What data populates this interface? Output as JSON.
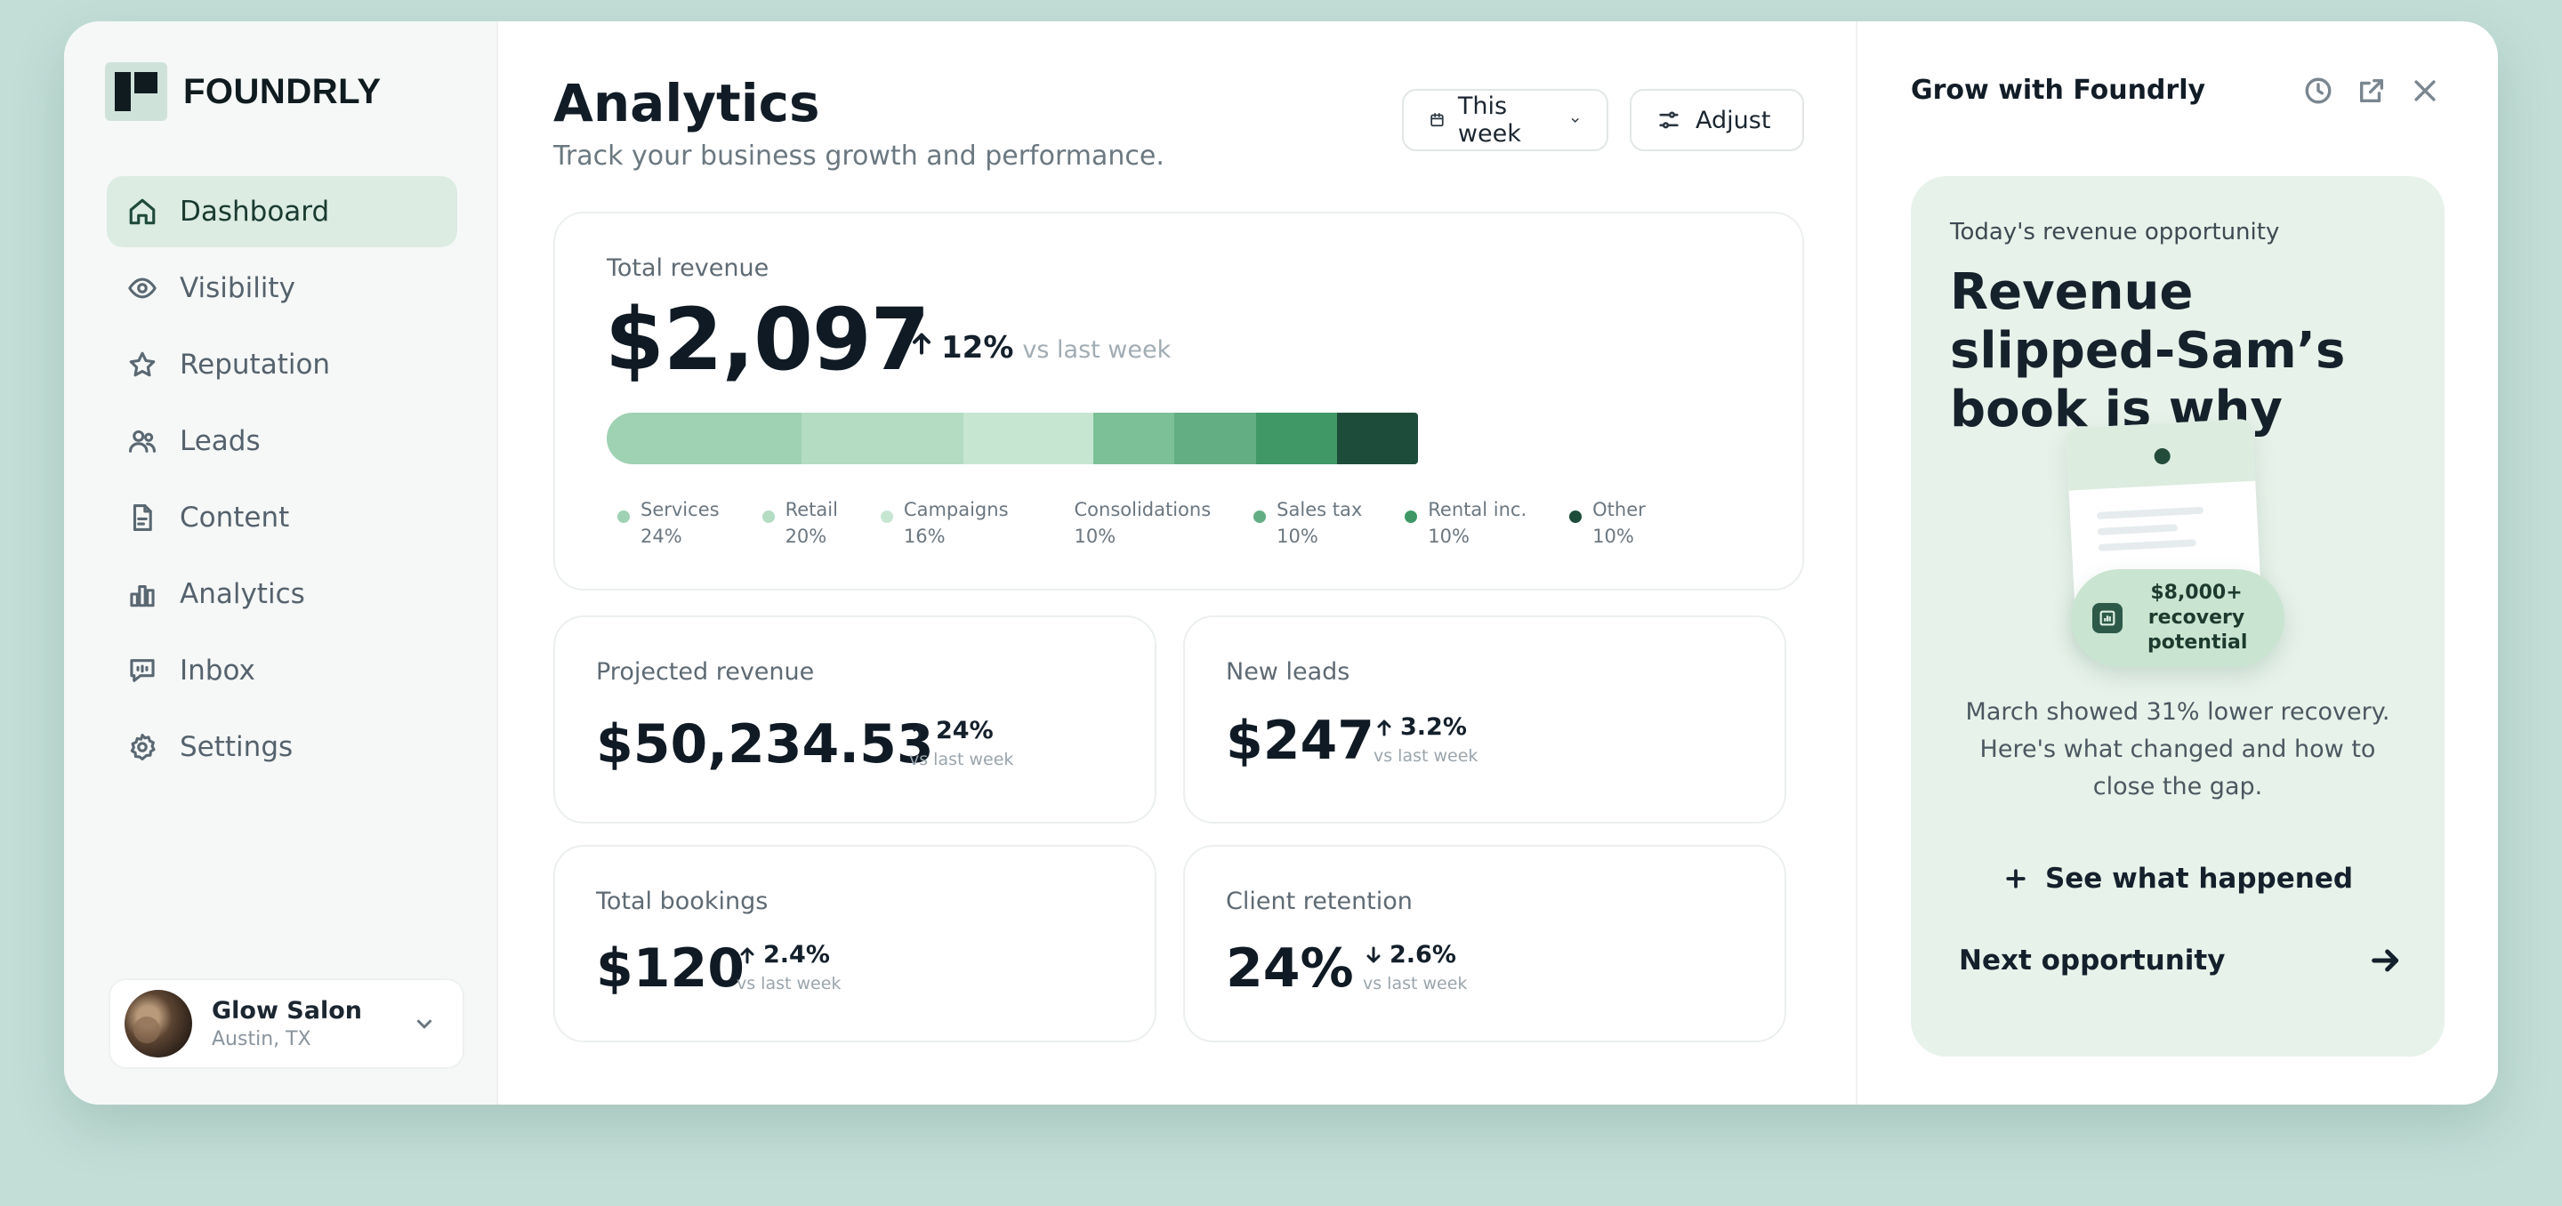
{
  "brand": {
    "name": "FOUNDRLY"
  },
  "nav": [
    {
      "label": "Dashboard",
      "icon": "home-icon",
      "active": true
    },
    {
      "label": "Visibility",
      "icon": "eye-icon"
    },
    {
      "label": "Reputation",
      "icon": "star-icon"
    },
    {
      "label": "Leads",
      "icon": "users-icon"
    },
    {
      "label": "Content",
      "icon": "document-icon"
    },
    {
      "label": "Analytics",
      "icon": "bar-chart-icon"
    },
    {
      "label": "Inbox",
      "icon": "message-icon"
    },
    {
      "label": "Settings",
      "icon": "gear-icon"
    }
  ],
  "account": {
    "name": "Glow Salon",
    "location": "Austin, TX"
  },
  "header": {
    "title": "Analytics",
    "subtitle": "Track your business growth and performance.",
    "range_label": "This week",
    "adjust_label": "Adjust"
  },
  "revenue": {
    "label": "Total revenue",
    "value": "$2,097",
    "delta": "12%",
    "delta_direction": "up",
    "vs": "vs last week",
    "segments": [
      {
        "name": "Services",
        "pct": "24%",
        "share": 24,
        "color": "#9fd1b3",
        "dot": true
      },
      {
        "name": "Retail",
        "pct": "20%",
        "share": 20,
        "color": "#b3dcc3",
        "dot": true
      },
      {
        "name": "Campaigns",
        "pct": "16%",
        "share": 16,
        "color": "#c7e6d2",
        "dot": true
      },
      {
        "name": "Consolidations",
        "pct": "10%",
        "share": 10,
        "color": "#7cc097",
        "dot": false
      },
      {
        "name": "Sales tax",
        "pct": "10%",
        "share": 10,
        "color": "#64ae84",
        "dot": true
      },
      {
        "name": "Rental inc.",
        "pct": "10%",
        "share": 10,
        "color": "#3f9866",
        "dot": true
      },
      {
        "name": "Other",
        "pct": "10%",
        "share": 10,
        "color": "#1d4d3a",
        "dot": true
      }
    ]
  },
  "stats": [
    {
      "label": "Projected revenue",
      "value": "$50,234.53",
      "delta": "24%",
      "direction": "up",
      "vs": "vs last week"
    },
    {
      "label": "New leads",
      "value": "$247",
      "delta": "3.2%",
      "direction": "up",
      "vs": "vs last week"
    },
    {
      "label": "Total bookings",
      "value": "$120",
      "delta": "2.4%",
      "direction": "up",
      "vs": "vs last week"
    },
    {
      "label": "Client retention",
      "value": "24%",
      "delta": "2.6%",
      "direction": "down",
      "vs": "vs last week"
    }
  ],
  "panel": {
    "title": "Grow with Foundrly",
    "eyebrow": "Today's revenue opportunity",
    "headline": "Revenue slipped-Sam’s book is why",
    "badge": "$8,000+ recovery potential",
    "badge_lines": [
      "$8,000+",
      "recovery",
      "potential"
    ],
    "body": "March showed 31% lower recovery. Here's what changed and how to close the gap.",
    "cta": "See what happened",
    "next": "Next opportunity"
  }
}
